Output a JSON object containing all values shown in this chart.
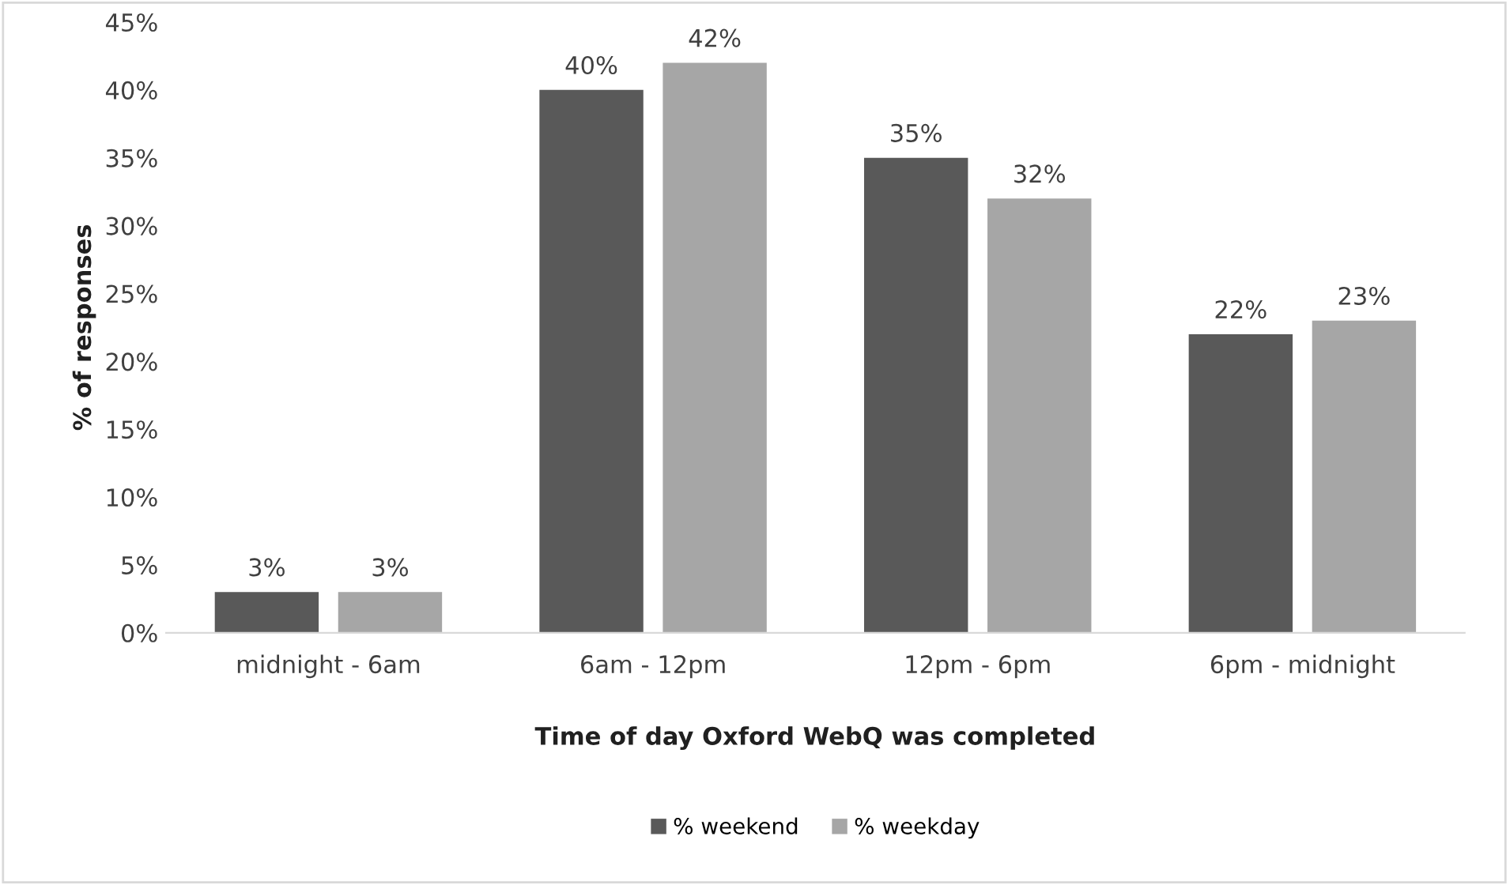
{
  "chart_data": {
    "type": "bar",
    "xlabel": "Time of day Oxford WebQ was completed",
    "ylabel": "% of responses",
    "categories": [
      "midnight - 6am",
      "6am - 12pm",
      "12pm - 6pm",
      "6pm - midnight"
    ],
    "series": [
      {
        "name": "% weekend",
        "color": "#595959",
        "values": [
          3,
          40,
          35,
          22
        ],
        "value_labels": [
          "3%",
          "40%",
          "35%",
          "22%"
        ]
      },
      {
        "name": "% weekday",
        "color": "#a6a6a6",
        "values": [
          3,
          42,
          32,
          23
        ],
        "value_labels": [
          "3%",
          "42%",
          "32%",
          "23%"
        ]
      }
    ],
    "ylim": [
      0,
      45
    ],
    "yticks": [
      {
        "value": 0,
        "label": "0%"
      },
      {
        "value": 5,
        "label": "5%"
      },
      {
        "value": 10,
        "label": "10%"
      },
      {
        "value": 15,
        "label": "15%"
      },
      {
        "value": 20,
        "label": "20%"
      },
      {
        "value": 25,
        "label": "25%"
      },
      {
        "value": 30,
        "label": "30%"
      },
      {
        "value": 35,
        "label": "35%"
      },
      {
        "value": 40,
        "label": "40%"
      },
      {
        "value": 45,
        "label": "45%"
      }
    ],
    "grid": false,
    "legend": "bottom"
  }
}
